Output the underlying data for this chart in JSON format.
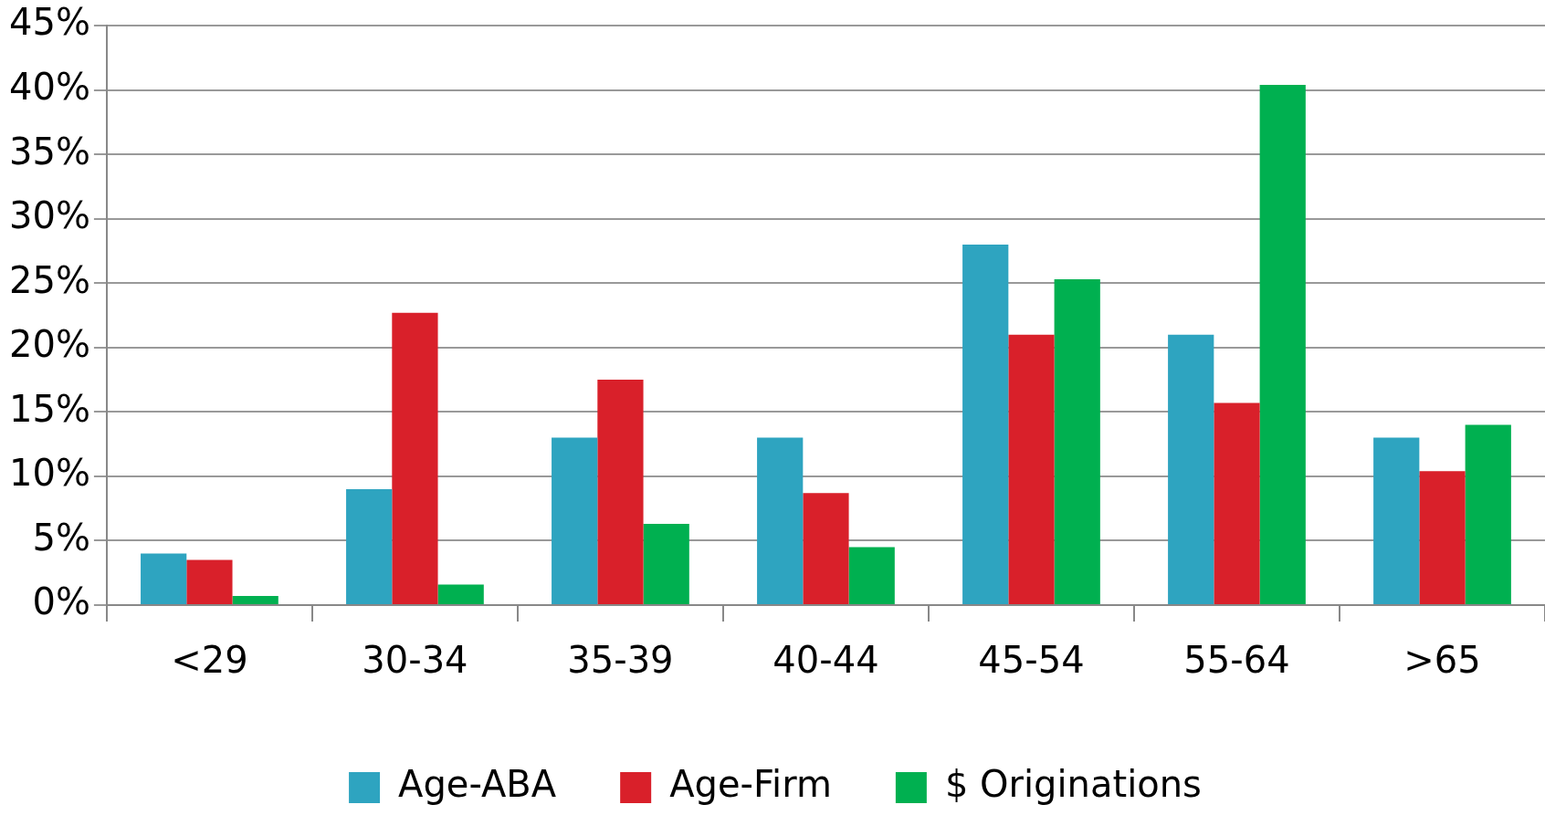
{
  "chart_data": {
    "type": "bar",
    "categories": [
      "<29",
      "30-34",
      "35-39",
      "40-44",
      "45-54",
      "55-64",
      ">65"
    ],
    "series": [
      {
        "name": "Age-ABA",
        "color": "#2ea4c0",
        "values": [
          4,
          9,
          13,
          13,
          28,
          21,
          13
        ]
      },
      {
        "name": "Age-Firm",
        "color": "#d9202a",
        "values": [
          3.5,
          22.7,
          17.5,
          8.7,
          21,
          15.7,
          10.4
        ]
      },
      {
        "name": "$ Originations",
        "color": "#00b050",
        "values": [
          0.7,
          1.6,
          6.3,
          4.5,
          25.3,
          40.4,
          14
        ]
      }
    ],
    "ylim": [
      0,
      45
    ],
    "yticks": [
      {
        "value": 0,
        "label": "0%"
      },
      {
        "value": 5,
        "label": "5%"
      },
      {
        "value": 10,
        "label": "10%"
      },
      {
        "value": 15,
        "label": "15%"
      },
      {
        "value": 20,
        "label": "20%"
      },
      {
        "value": 25,
        "label": "25%"
      },
      {
        "value": 30,
        "label": "30%"
      },
      {
        "value": 35,
        "label": "35%"
      },
      {
        "value": 40,
        "label": "40%"
      },
      {
        "value": 45,
        "label": "45%"
      }
    ],
    "grid": "y",
    "legend": "bottom"
  }
}
